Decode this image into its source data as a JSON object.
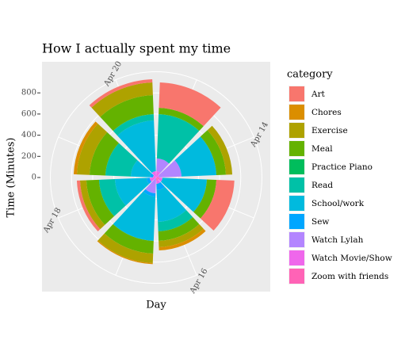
{
  "chart_data": {
    "type": "polar_stacked_bar",
    "title": "How I actually spent my time",
    "x_label": "Day",
    "y_label": "Time (Minutes)",
    "legend_title": "category",
    "categories": [
      null,
      "Apr 14",
      null,
      "Apr 16",
      null,
      "Apr 18",
      null,
      "Apr 20"
    ],
    "ylim": [
      0,
      1000
    ],
    "yticks": [
      0,
      200,
      400,
      600,
      800
    ],
    "grid": true,
    "legend": "right",
    "series": [
      {
        "name": "Art",
        "color": "#F8766D",
        "values": [
          240,
          0,
          170,
          0,
          0,
          30,
          0,
          30
        ]
      },
      {
        "name": "Chores",
        "color": "#DB8E00",
        "values": [
          0,
          0,
          0,
          30,
          10,
          0,
          30,
          0
        ]
      },
      {
        "name": "Exercise",
        "color": "#AEA200",
        "values": [
          0,
          60,
          0,
          60,
          90,
          60,
          120,
          120
        ]
      },
      {
        "name": "Meal",
        "color": "#64B200",
        "values": [
          60,
          90,
          90,
          90,
          120,
          120,
          150,
          180
        ]
      },
      {
        "name": "Practice Piano",
        "color": "#00BD5C",
        "values": [
          0,
          0,
          0,
          0,
          0,
          0,
          0,
          0
        ]
      },
      {
        "name": "Read",
        "color": "#00C1A7",
        "values": [
          420,
          0,
          0,
          90,
          0,
          150,
          240,
          60
        ]
      },
      {
        "name": "School/work",
        "color": "#00BADE",
        "values": [
          0,
          330,
          420,
          300,
          420,
          300,
          180,
          480
        ]
      },
      {
        "name": "Sew",
        "color": "#00A6FF",
        "values": [
          0,
          0,
          0,
          60,
          30,
          30,
          30,
          0
        ]
      },
      {
        "name": "Watch Lylah",
        "color": "#B385FF",
        "values": [
          120,
          210,
          0,
          0,
          150,
          0,
          0,
          0
        ]
      },
      {
        "name": "Watch Movie/Show",
        "color": "#EF67EB",
        "values": [
          60,
          30,
          30,
          30,
          0,
          60,
          30,
          60
        ]
      },
      {
        "name": "Zoom with friends",
        "color": "#FF63B6",
        "values": [
          0,
          0,
          30,
          30,
          0,
          0,
          0,
          0
        ]
      }
    ]
  }
}
